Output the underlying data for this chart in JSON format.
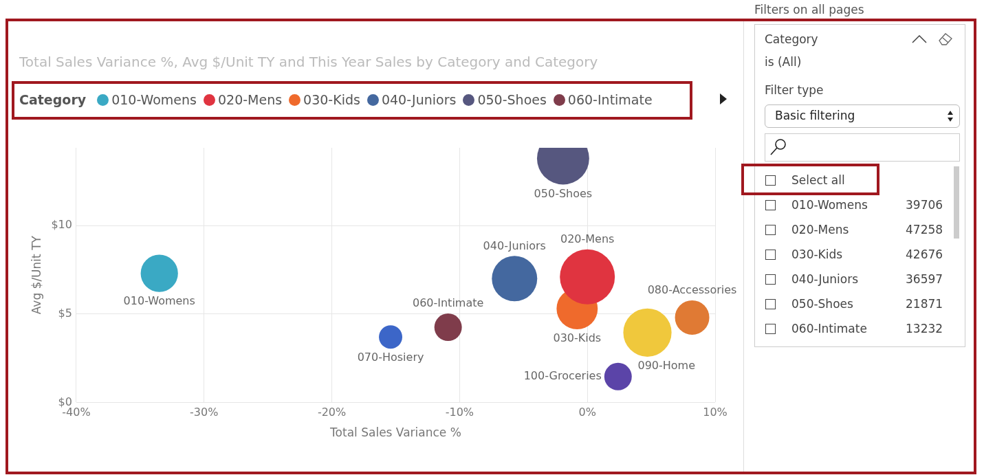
{
  "chart_data": {
    "type": "bubble",
    "title": "Total Sales Variance %, Avg $/Unit TY and This Year Sales by Category and Category",
    "xlabel": "Total Sales Variance %",
    "ylabel": "Avg $/Unit TY",
    "legend_title": "Category",
    "legend": "top left",
    "grid": true,
    "xlim": [
      -40,
      10
    ],
    "xticks": [
      {
        "value": -40,
        "label": "-40%"
      },
      {
        "value": -30,
        "label": "-30%"
      },
      {
        "value": -20,
        "label": "-20%"
      },
      {
        "value": -10,
        "label": "-10%"
      },
      {
        "value": 0,
        "label": "0%"
      },
      {
        "value": 10,
        "label": "10%"
      }
    ],
    "ylim": [
      0,
      14.4
    ],
    "yticks": [
      {
        "value": 0,
        "label": "$0"
      },
      {
        "value": 5,
        "label": "$5"
      },
      {
        "value": 10,
        "label": "$10"
      }
    ],
    "series": [
      {
        "name": "010-Womens",
        "color": "#3aa9c4",
        "x": [
          -33.5
        ],
        "values": [
          7.3
        ],
        "sizes": [
          0.46
        ]
      },
      {
        "name": "020-Mens",
        "color": "#e03440",
        "x": [
          0
        ],
        "values": [
          7.1
        ],
        "sizes": [
          1
        ]
      },
      {
        "name": "030-Kids",
        "color": "#ef6a2c",
        "x": [
          -0.8
        ],
        "values": [
          5.3
        ],
        "sizes": [
          0.56
        ]
      },
      {
        "name": "040-Juniors",
        "color": "#44689f",
        "x": [
          -5.7
        ],
        "values": [
          7.0
        ],
        "sizes": [
          0.68
        ]
      },
      {
        "name": "050-Shoes",
        "color": "#56577f",
        "x": [
          -1.9
        ],
        "values": [
          13.8
        ],
        "sizes": [
          0.9
        ]
      },
      {
        "name": "060-Intimate",
        "color": "#7f3c4b",
        "x": [
          -10.9
        ],
        "values": [
          4.25
        ],
        "sizes": [
          0.25
        ]
      },
      {
        "name": "070-Hosiery",
        "color": "#3c66c8",
        "x": [
          -15.4
        ],
        "values": [
          3.7
        ],
        "sizes": [
          0.18
        ]
      },
      {
        "name": "080-Accessories",
        "color": "#e07a34",
        "x": [
          8.2
        ],
        "values": [
          4.8
        ],
        "sizes": [
          0.39
        ]
      },
      {
        "name": "090-Home",
        "color": "#f0c83c",
        "x": [
          4.7
        ],
        "values": [
          3.95
        ],
        "sizes": [
          0.77
        ]
      },
      {
        "name": "100-Groceries",
        "color": "#5b44a8",
        "x": [
          2.4
        ],
        "values": [
          1.46
        ],
        "sizes": [
          0.25
        ]
      }
    ],
    "annotations": [
      "Filters on all pages",
      "Category",
      "is (All)",
      "Filter type",
      "Basic filtering",
      "Select all",
      "010-Womens",
      "39706",
      "020-Mens",
      "47258",
      "030-Kids",
      "42676",
      "040-Juniors",
      "36597",
      "050-Shoes",
      "21871",
      "060-Intimate",
      "13232"
    ]
  }
}
